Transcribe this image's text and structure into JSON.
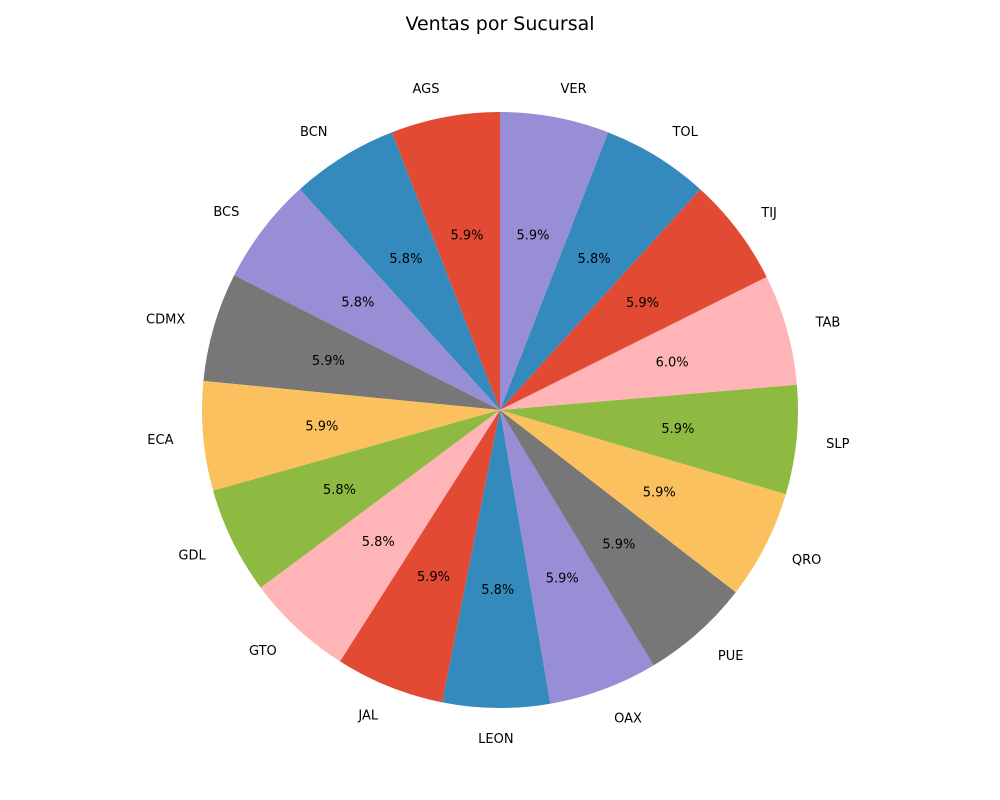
{
  "chart_data": {
    "type": "pie",
    "title": "Ventas por Sucursal",
    "categories": [
      "AGS",
      "BCN",
      "BCS",
      "CDMX",
      "ECA",
      "GDL",
      "GTO",
      "JAL",
      "LEON",
      "OAX",
      "PUE",
      "QRO",
      "SLP",
      "TAB",
      "TIJ",
      "TOL",
      "VER"
    ],
    "values": [
      5.9,
      5.8,
      5.8,
      5.9,
      5.9,
      5.8,
      5.8,
      5.9,
      5.8,
      5.9,
      5.9,
      5.9,
      5.9,
      6.0,
      5.9,
      5.8,
      5.9
    ],
    "value_labels": [
      "5.9%",
      "5.8%",
      "5.8%",
      "5.9%",
      "5.9%",
      "5.8%",
      "5.8%",
      "5.9%",
      "5.8%",
      "5.9%",
      "5.9%",
      "5.9%",
      "5.9%",
      "6.0%",
      "5.9%",
      "5.8%",
      "5.9%"
    ],
    "colors": [
      "#E24A33",
      "#348ABD",
      "#988ED5",
      "#777777",
      "#FBC15E",
      "#8EBA42",
      "#FFB5B8",
      "#E24A33",
      "#348ABD",
      "#988ED5",
      "#777777",
      "#FBC15E",
      "#8EBA42",
      "#FFB5B8",
      "#E24A33",
      "#348ABD",
      "#988ED5"
    ],
    "start_angle_deg": 90,
    "direction": "counterclockwise",
    "legend": "none"
  }
}
